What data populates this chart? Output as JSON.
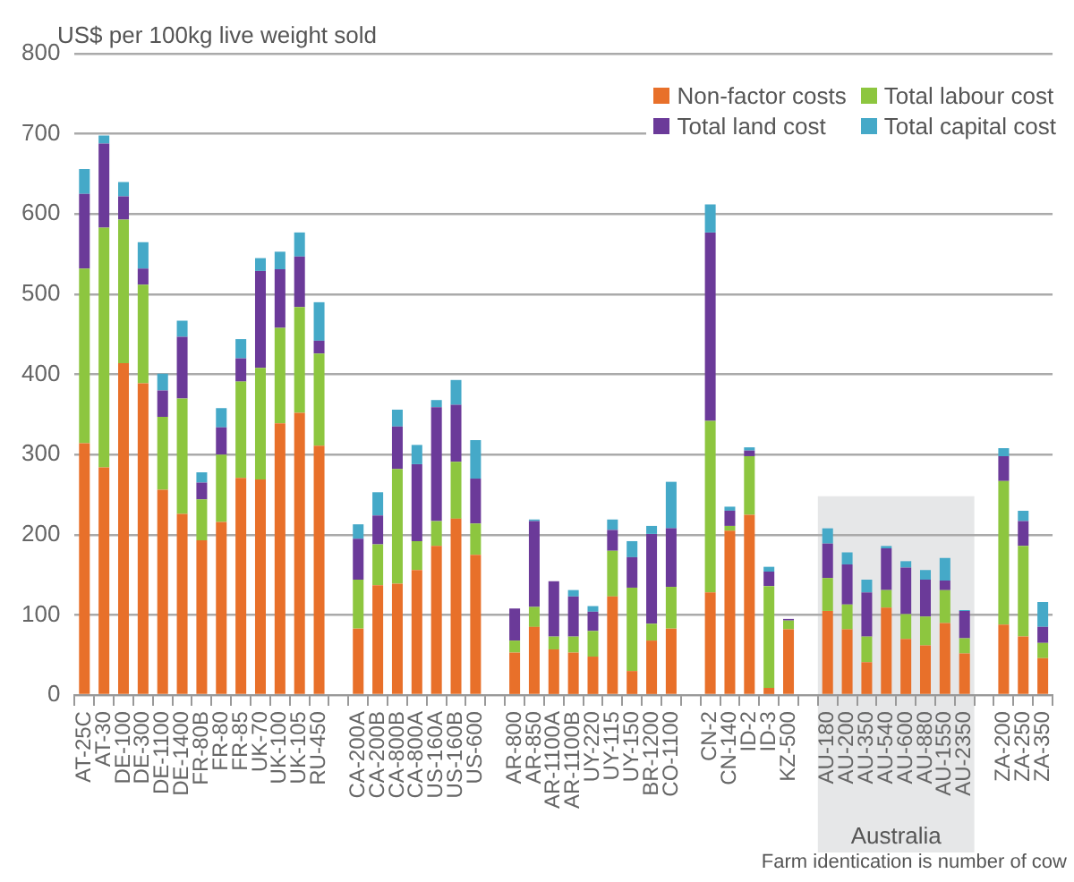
{
  "chart_data": {
    "type": "bar",
    "stacked": true,
    "ylabel": "US$ per 100kg live weight sold",
    "categories": [
      "AT-25C",
      "AT-30",
      "DE-100",
      "DE-300",
      "DE-1100",
      "DE-1400",
      "FR-80B",
      "FR-80",
      "FR-85",
      "UK-70",
      "UK-100",
      "UK-105",
      "RU-450",
      null,
      "CA-200A",
      "CA-200B",
      "CA-800B",
      "CA-800A",
      "US-160A",
      "US-160B",
      "US-600",
      null,
      "AR-800",
      "AR-850",
      "AR-1100A",
      "AR-1100B",
      "UY-220",
      "UY-115",
      "UY-150",
      "BR-1200",
      "CO-1100",
      null,
      "CN-2",
      "CN-140",
      "ID-2",
      "ID-3",
      "KZ-500",
      null,
      "AU-180",
      "AU-200",
      "AU-350",
      "AU-540",
      "AU-600",
      "AU-880",
      "AU-1550",
      "AU-2350",
      null,
      "ZA-200",
      "ZA-250",
      "ZA-350"
    ],
    "series": [
      {
        "name": "Non-factor costs",
        "color": "#e8702a",
        "values": [
          314,
          284,
          414,
          389,
          256,
          226,
          193,
          216,
          271,
          269,
          339,
          352,
          311,
          null,
          83,
          137,
          139,
          156,
          186,
          220,
          175,
          null,
          53,
          85,
          57,
          53,
          48,
          123,
          30,
          68,
          83,
          null,
          128,
          205,
          225,
          9,
          82,
          null,
          105,
          82,
          41,
          109,
          70,
          62,
          90,
          52,
          null,
          88,
          73,
          46
        ]
      },
      {
        "name": "Total labour cost",
        "color": "#8dc63f",
        "values": [
          218,
          299,
          179,
          123,
          91,
          144,
          51,
          84,
          120,
          139,
          119,
          132,
          115,
          null,
          61,
          51,
          143,
          36,
          31,
          71,
          39,
          null,
          15,
          25,
          16,
          20,
          32,
          57,
          104,
          21,
          52,
          null,
          214,
          6,
          73,
          127,
          11,
          null,
          41,
          31,
          32,
          22,
          31,
          36,
          41,
          19,
          null,
          179,
          113,
          19
        ]
      },
      {
        "name": "Total land cost",
        "color": "#6b3a99",
        "values": [
          93,
          105,
          29,
          20,
          33,
          77,
          21,
          34,
          29,
          121,
          73,
          63,
          16,
          null,
          51,
          36,
          53,
          96,
          142,
          71,
          56,
          null,
          40,
          107,
          69,
          50,
          24,
          26,
          38,
          112,
          73,
          null,
          235,
          19,
          7,
          18,
          2,
          null,
          43,
          50,
          55,
          52,
          58,
          46,
          12,
          34,
          null,
          31,
          31,
          20
        ]
      },
      {
        "name": "Total capital cost",
        "color": "#45a9c8",
        "values": [
          31,
          10,
          18,
          33,
          21,
          20,
          13,
          24,
          24,
          16,
          22,
          30,
          48,
          null,
          18,
          29,
          21,
          24,
          9,
          31,
          48,
          null,
          0,
          2,
          0,
          8,
          7,
          13,
          20,
          10,
          58,
          null,
          35,
          5,
          4,
          6,
          0,
          null,
          19,
          15,
          16,
          3,
          8,
          12,
          28,
          1,
          null,
          10,
          13,
          31
        ]
      }
    ],
    "ylim": [
      0,
      800
    ],
    "yticks": [
      0,
      100,
      200,
      300,
      400,
      500,
      600,
      700,
      800
    ],
    "grid": "y",
    "legend": "top right",
    "bands": [
      {
        "axis": "x",
        "from": "AU-180",
        "to": "AU-2350",
        "label": "Australia",
        "color": "#e6e7e8"
      }
    ],
    "annotations": [
      "Farm identication is number of cow"
    ]
  }
}
